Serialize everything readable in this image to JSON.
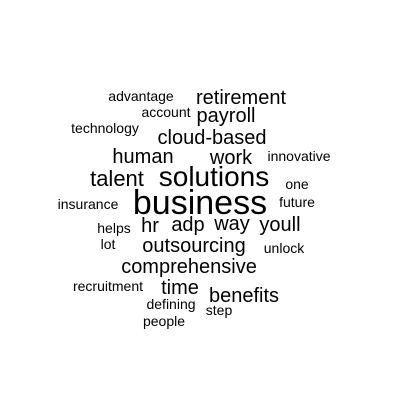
{
  "wordcloud": {
    "words": [
      {
        "text": "advantage"
      },
      {
        "text": "retirement"
      },
      {
        "text": "account"
      },
      {
        "text": "payroll"
      },
      {
        "text": "technology"
      },
      {
        "text": "cloud-based"
      },
      {
        "text": "human"
      },
      {
        "text": "work"
      },
      {
        "text": "innovative"
      },
      {
        "text": "talent"
      },
      {
        "text": "solutions"
      },
      {
        "text": "one"
      },
      {
        "text": "business"
      },
      {
        "text": "insurance"
      },
      {
        "text": "future"
      },
      {
        "text": "helps"
      },
      {
        "text": "hr"
      },
      {
        "text": "adp"
      },
      {
        "text": "way"
      },
      {
        "text": "youll"
      },
      {
        "text": "lot"
      },
      {
        "text": "outsourcing"
      },
      {
        "text": "unlock"
      },
      {
        "text": "comprehensive"
      },
      {
        "text": "recruitment"
      },
      {
        "text": "time"
      },
      {
        "text": "benefits"
      },
      {
        "text": "defining"
      },
      {
        "text": "step"
      },
      {
        "text": "people"
      }
    ],
    "colors": {
      "text": "#000000",
      "background": "#ffffff"
    }
  }
}
